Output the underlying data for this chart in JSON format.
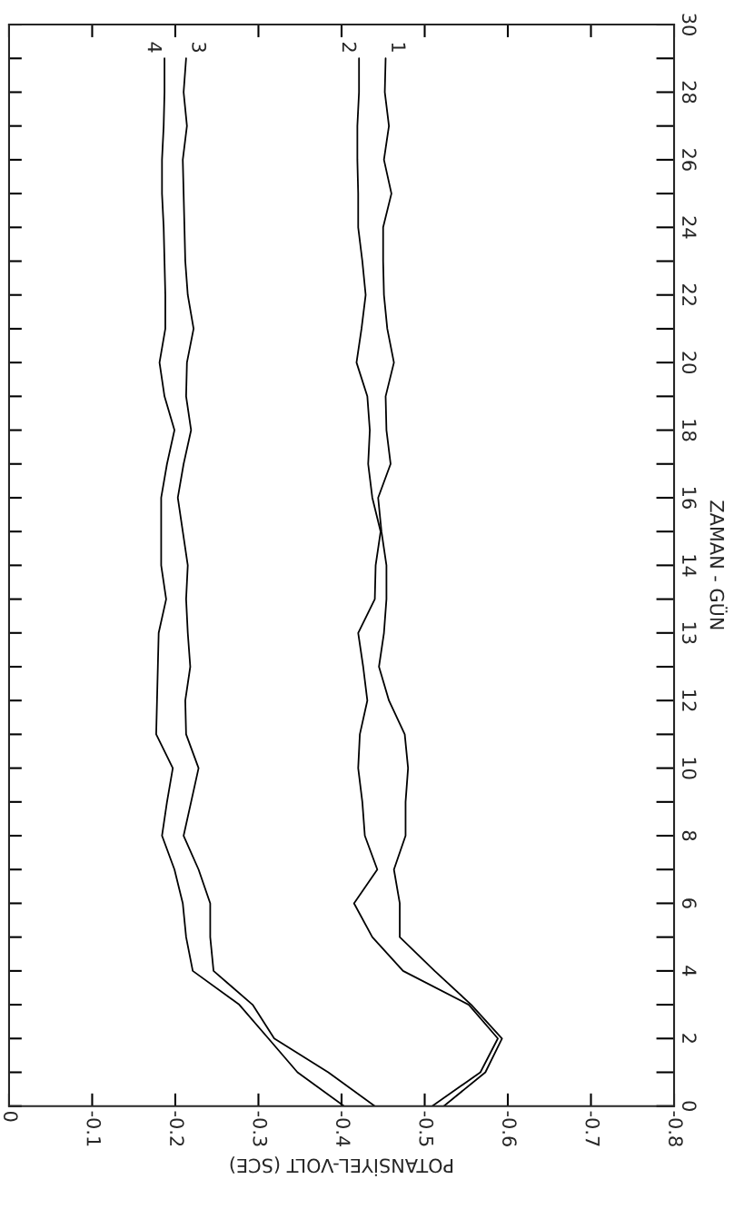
{
  "chart_data": {
    "type": "line",
    "orientation": "horizontal",
    "xlabel": "POTANSİYEL-VOLT (SCE)",
    "ylabel": "ZAMAN - GÜN",
    "categories": [
      "30",
      null,
      "28",
      null,
      "26",
      null,
      "24",
      null,
      "22",
      null,
      "20",
      null,
      "18",
      null,
      "16",
      null,
      "14",
      null,
      "13",
      null,
      "12",
      null,
      "10",
      null,
      "8",
      null,
      "6",
      null,
      "4",
      null,
      "2",
      null,
      "0"
    ],
    "xlim": [
      0,
      -0.8
    ],
    "xticks": [
      0,
      -0.1,
      -0.2,
      -0.3,
      -0.4,
      -0.5,
      -0.6,
      -0.7,
      -0.8
    ],
    "grid": false,
    "legend": "top",
    "marker": "none",
    "line_style": "solid",
    "series": [
      {
        "name": "1",
        "color": "#000000",
        "values": [
          null,
          -0.453,
          -0.452,
          -0.457,
          -0.451,
          -0.46,
          -0.45,
          -0.45,
          -0.451,
          -0.455,
          -0.463,
          -0.453,
          -0.454,
          -0.459,
          -0.444,
          -0.448,
          -0.454,
          -0.454,
          -0.451,
          -0.445,
          -0.457,
          -0.476,
          -0.48,
          -0.477,
          -0.477,
          -0.463,
          -0.47,
          -0.47,
          -0.512,
          -0.556,
          -0.593,
          -0.573,
          -0.523
        ]
      },
      {
        "name": "2",
        "color": "#000000",
        "values": [
          null,
          -0.421,
          -0.421,
          -0.419,
          -0.419,
          -0.42,
          -0.42,
          -0.425,
          -0.429,
          -0.424,
          -0.418,
          -0.431,
          -0.434,
          -0.432,
          -0.437,
          -0.447,
          -0.441,
          -0.44,
          -0.42,
          -0.426,
          -0.431,
          -0.422,
          -0.42,
          -0.425,
          -0.428,
          -0.443,
          -0.415,
          -0.437,
          -0.474,
          -0.553,
          -0.588,
          -0.567,
          -0.509
        ]
      },
      {
        "name": "3",
        "color": "#000000",
        "values": [
          null,
          -0.213,
          -0.21,
          -0.214,
          -0.209,
          -0.21,
          -0.211,
          -0.212,
          -0.215,
          -0.222,
          -0.214,
          -0.213,
          -0.219,
          -0.21,
          -0.203,
          -0.209,
          -0.215,
          -0.213,
          -0.215,
          -0.218,
          -0.212,
          -0.213,
          -0.228,
          -0.219,
          -0.21,
          -0.228,
          -0.242,
          -0.242,
          -0.246,
          -0.293,
          -0.319,
          -0.384,
          -0.44
        ]
      },
      {
        "name": "4",
        "color": "#000000",
        "values": [
          null,
          -0.187,
          -0.187,
          -0.186,
          -0.184,
          -0.184,
          -0.186,
          -0.187,
          -0.188,
          -0.188,
          -0.181,
          -0.187,
          -0.199,
          -0.19,
          -0.183,
          -0.183,
          -0.183,
          -0.189,
          -0.18,
          -0.179,
          -0.178,
          -0.177,
          -0.197,
          -0.19,
          -0.184,
          -0.199,
          -0.209,
          -0.213,
          -0.221,
          -0.277,
          -0.312,
          -0.347,
          -0.403
        ]
      }
    ]
  }
}
